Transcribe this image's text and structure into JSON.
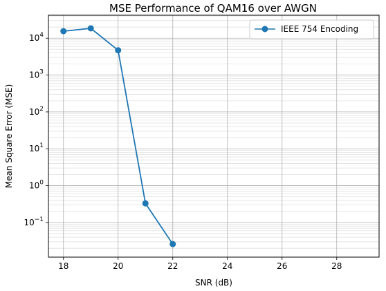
{
  "chart_data": {
    "type": "line",
    "title": "MSE Performance of QAM16 over AWGN",
    "xlabel": "SNR (dB)",
    "ylabel": "Mean Square Error (MSE)",
    "xlim": [
      17.45,
      29.55
    ],
    "ylim": [
      0.0115,
      42000
    ],
    "yscale": "log",
    "grid": true,
    "grid_minor_y": true,
    "legend_position": "top-right",
    "x_ticks": [
      18,
      20,
      22,
      24,
      26,
      28
    ],
    "x_tick_labels": [
      "18",
      "20",
      "22",
      "24",
      "26",
      "28"
    ],
    "y_ticks": [
      {
        "value": 10000,
        "base": "10",
        "exp": "4"
      },
      {
        "value": 1000,
        "base": "10",
        "exp": "3"
      },
      {
        "value": 100,
        "base": "10",
        "exp": "2"
      },
      {
        "value": 10,
        "base": "10",
        "exp": "1"
      },
      {
        "value": 1,
        "base": "10",
        "exp": "0"
      },
      {
        "value": 0.1,
        "base": "10",
        "exp": "−1"
      }
    ],
    "series": [
      {
        "name": "IEEE 754 Encoding",
        "color": "#1f77b4",
        "marker": "circle",
        "x": [
          18,
          19,
          20,
          21,
          22
        ],
        "y": [
          15500,
          18500,
          4700,
          0.33,
          0.026
        ]
      }
    ]
  }
}
